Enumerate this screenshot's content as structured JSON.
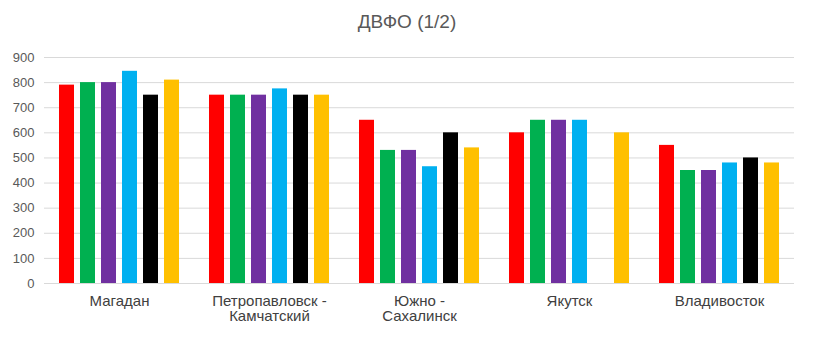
{
  "chart_data": {
    "type": "bar",
    "title": "ДВФО (1/2)",
    "categories": [
      "Магадан",
      "Петропавловск -\nКамчатский",
      "Южно -\nСахалинск",
      "Якутск",
      "Владивосток"
    ],
    "series": [
      {
        "color": "#ff0000",
        "values": [
          790,
          750,
          650,
          600,
          550
        ]
      },
      {
        "color": "#00b050",
        "values": [
          800,
          750,
          530,
          650,
          450
        ]
      },
      {
        "color": "#7030a0",
        "values": [
          800,
          750,
          530,
          650,
          450
        ]
      },
      {
        "color": "#00b0f0",
        "values": [
          845,
          775,
          465,
          650,
          480
        ]
      },
      {
        "color": "#000000",
        "values": [
          750,
          750,
          600,
          null,
          500
        ]
      },
      {
        "color": "#ffc000",
        "values": [
          810,
          750,
          540,
          600,
          480
        ]
      }
    ],
    "ylim": [
      0,
      900
    ],
    "yticks": [
      0,
      100,
      200,
      300,
      400,
      500,
      600,
      700,
      800,
      900
    ],
    "grid": true
  }
}
